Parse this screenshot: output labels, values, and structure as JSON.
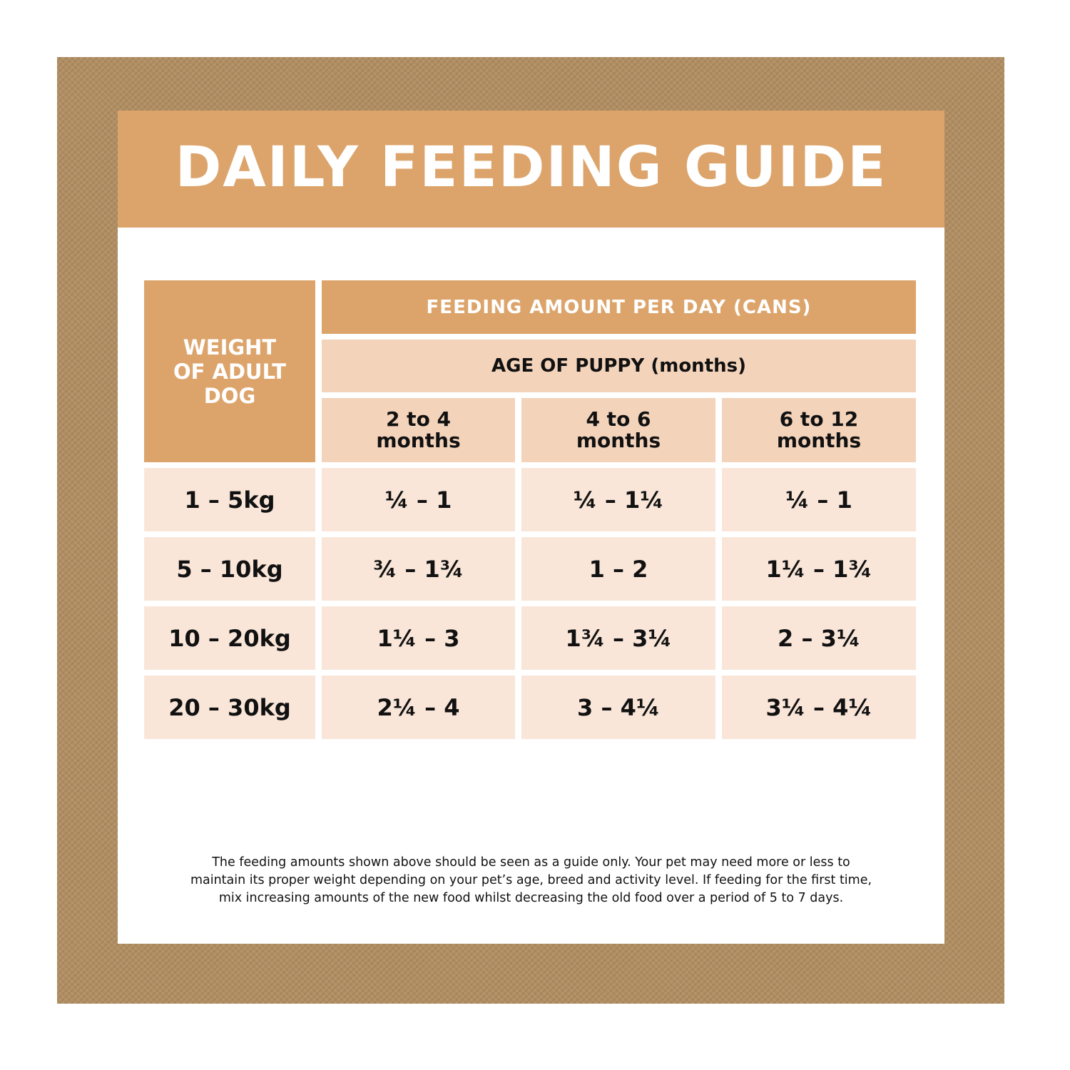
{
  "title": "DAILY FEEDING GUIDE",
  "table": {
    "weight_header": [
      "WEIGHT",
      "OF ADULT",
      "DOG"
    ],
    "feeding_header": "FEEDING AMOUNT PER DAY (CANS)",
    "age_header": "AGE OF PUPPY (months)",
    "age_columns": [
      {
        "line1": "2 to 4",
        "line2": "months"
      },
      {
        "line1": "4 to 6",
        "line2": "months"
      },
      {
        "line1": "6 to 12",
        "line2": "months"
      }
    ],
    "rows": [
      {
        "weight": "1 – 5kg",
        "values": [
          "¼ – 1",
          "¼ – 1¼",
          "¼ – 1"
        ]
      },
      {
        "weight": "5 – 10kg",
        "values": [
          "¾ – 1¾",
          "1 – 2",
          "1¼ – 1¾"
        ]
      },
      {
        "weight": "10 – 20kg",
        "values": [
          "1¼ – 3",
          "1¾ – 3¼",
          "2 – 3¼"
        ]
      },
      {
        "weight": "20 – 30kg",
        "values": [
          "2¼ – 4",
          "3 – 4¼",
          "3¼ – 4¼"
        ]
      }
    ]
  },
  "footnote": [
    "The feeding amounts shown above should be seen as a guide only. Your pet may need more or less to",
    "maintain its proper weight depending on your pet’s age, breed and activity level. If feeding for the first time,",
    "mix increasing amounts of the new food whilst decreasing the old food over a period of 5 to 7 days."
  ],
  "colors": {
    "frame": "#b18e62",
    "header_dark": "#dca46b",
    "header_light": "#f4d3bb",
    "body_cell": "#f9e6d9"
  }
}
